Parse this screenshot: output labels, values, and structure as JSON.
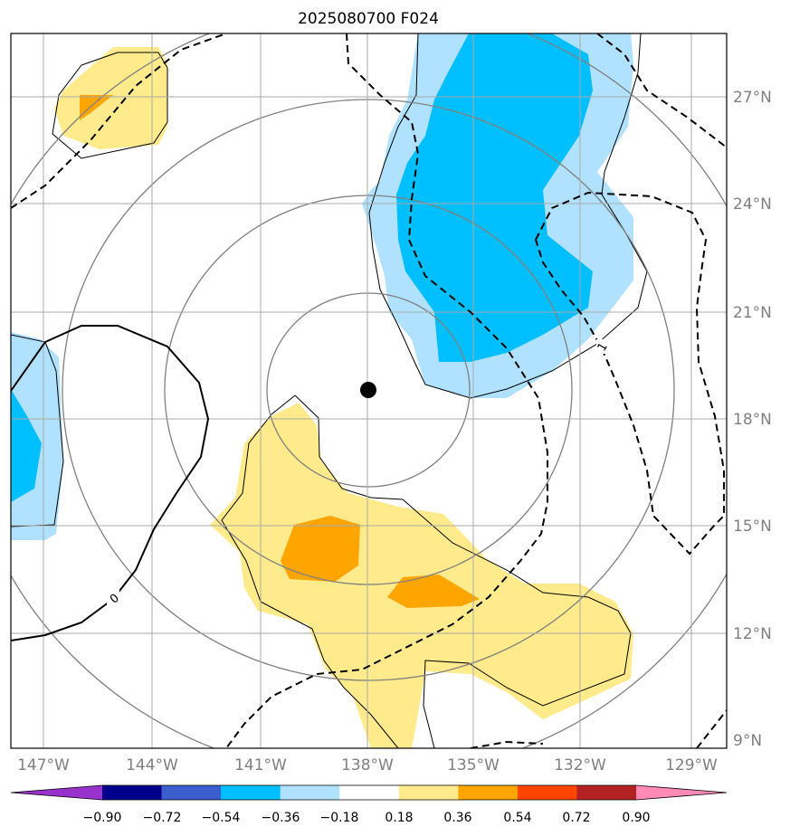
{
  "title": "2025080700 F024",
  "lat_labels": [
    "27°N",
    "24°N",
    "21°N",
    "18°N",
    "15°N",
    "12°N",
    "9°N"
  ],
  "lon_labels": [
    "147°W",
    "144°W",
    "141°W",
    "138°W",
    "135°W",
    "132°W",
    "129°W"
  ],
  "contour_labels": [
    "0",
    "1"
  ],
  "colorbar": {
    "tick_labels": [
      "−0.90",
      "−0.72",
      "−0.54",
      "−0.36",
      "−0.18",
      "0.18",
      "0.36",
      "0.54",
      "0.72",
      "0.90"
    ],
    "colors": [
      "#9932cc",
      "#00008b",
      "#3a5fcd",
      "#00bfff",
      "#b0e2ff",
      "#ffffff",
      "#ffeb8c",
      "#ffa500",
      "#ff4500",
      "#b22222",
      "#ff8ab5"
    ]
  },
  "colors": {
    "frame": "#000000",
    "gridline": "#a9a9a9",
    "range_ring": "#808080",
    "center_marker": "#000000"
  }
}
